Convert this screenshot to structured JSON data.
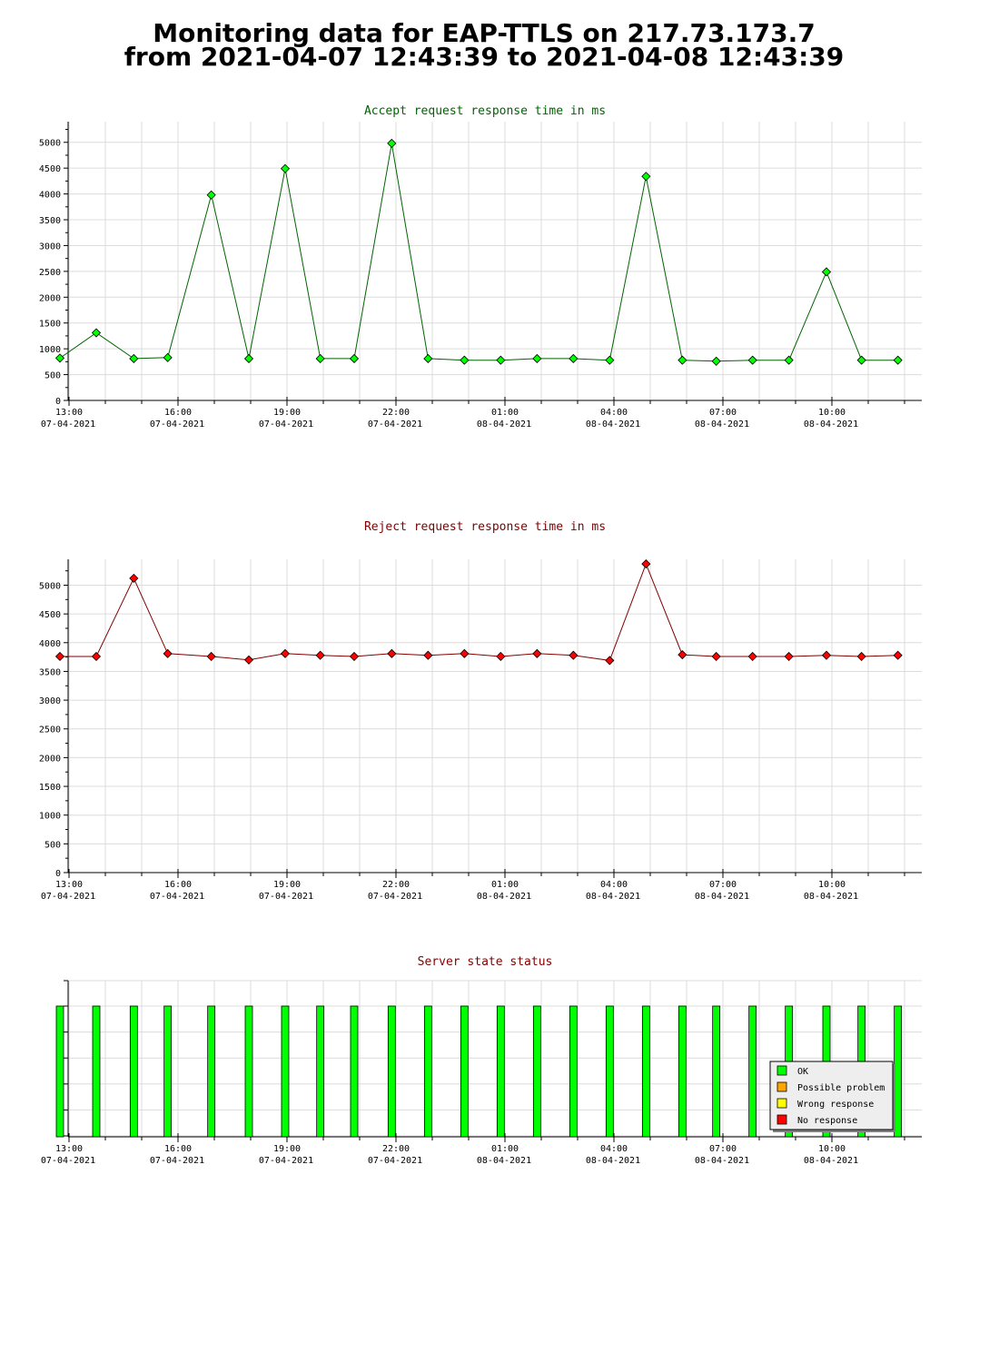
{
  "page": {
    "title_line1": "Monitoring data for EAP-TTLS on 217.73.173.7",
    "title_line2": "from 2021-04-07 12:43:39 to 2021-04-08 12:43:39"
  },
  "x_ticks": [
    {
      "time": "13:00",
      "date": "07-04-2021"
    },
    {
      "time": "16:00",
      "date": "07-04-2021"
    },
    {
      "time": "19:00",
      "date": "07-04-2021"
    },
    {
      "time": "22:00",
      "date": "07-04-2021"
    },
    {
      "time": "01:00",
      "date": "08-04-2021"
    },
    {
      "time": "04:00",
      "date": "08-04-2021"
    },
    {
      "time": "07:00",
      "date": "08-04-2021"
    },
    {
      "time": "10:00",
      "date": "08-04-2021"
    }
  ],
  "colors": {
    "accept_line": "#006400",
    "accept_marker": "#00ff00",
    "accept_title": "#006400",
    "reject_line": "#800000",
    "reject_marker": "#ff0000",
    "reject_title": "#800000",
    "status_title": "#800000",
    "ok": "#00ff00",
    "possible_problem": "#ffa500",
    "wrong_response": "#ffff00",
    "no_response": "#ff0000"
  },
  "chart_data": [
    {
      "type": "line",
      "title": "Accept request response time in ms",
      "ylim": [
        0,
        5400
      ],
      "yticks": [
        0,
        500,
        1000,
        1500,
        2000,
        2500,
        3000,
        3500,
        4000,
        4500,
        5000
      ],
      "grid": true,
      "x": [
        "12:45",
        "13:45",
        "14:47",
        "15:43",
        "16:55",
        "17:57",
        "18:57",
        "19:55",
        "20:51",
        "21:53",
        "22:53",
        "23:53",
        "00:53",
        "01:53",
        "02:53",
        "03:53",
        "04:53",
        "05:53",
        "06:49",
        "07:49",
        "08:49",
        "09:51",
        "10:49",
        "11:49"
      ],
      "series": [
        {
          "values": [
            820,
            1310,
            810,
            830,
            3980,
            810,
            4490,
            810,
            810,
            4980,
            810,
            780,
            780,
            810,
            810,
            780,
            4340,
            780,
            760,
            780,
            780,
            2490,
            780,
            780
          ]
        }
      ]
    },
    {
      "type": "line",
      "title": "Reject request response time in ms",
      "ylim": [
        0,
        5450
      ],
      "yticks": [
        0,
        500,
        1000,
        1500,
        2000,
        2500,
        3000,
        3500,
        4000,
        4500,
        5000
      ],
      "grid": true,
      "x": [
        "12:45",
        "13:45",
        "14:47",
        "15:43",
        "16:55",
        "17:57",
        "18:57",
        "19:55",
        "20:51",
        "21:53",
        "22:53",
        "23:53",
        "00:53",
        "01:53",
        "02:53",
        "03:53",
        "04:53",
        "05:53",
        "06:49",
        "07:49",
        "08:49",
        "09:51",
        "10:49",
        "11:49"
      ],
      "series": [
        {
          "values": [
            3760,
            3760,
            5120,
            3810,
            3760,
            3700,
            3810,
            3780,
            3760,
            3810,
            3780,
            3810,
            3760,
            3810,
            3780,
            3690,
            5370,
            3790,
            3760,
            3760,
            3760,
            3780,
            3760,
            3780
          ]
        }
      ]
    },
    {
      "type": "bar",
      "title": "Server state status",
      "categories": [
        "12:45",
        "13:45",
        "14:47",
        "15:43",
        "16:55",
        "17:57",
        "18:57",
        "19:55",
        "20:51",
        "21:53",
        "22:53",
        "23:53",
        "00:53",
        "01:53",
        "02:53",
        "03:53",
        "04:53",
        "05:53",
        "06:49",
        "07:49",
        "08:49",
        "09:51",
        "10:49",
        "11:49"
      ],
      "states": [
        "OK",
        "OK",
        "OK",
        "OK",
        "OK",
        "OK",
        "OK",
        "OK",
        "OK",
        "OK",
        "OK",
        "OK",
        "OK",
        "OK",
        "OK",
        "OK",
        "OK",
        "OK",
        "OK",
        "OK",
        "OK",
        "OK",
        "OK",
        "OK"
      ],
      "legend": [
        "OK",
        "Possible problem",
        "Wrong response",
        "No response"
      ],
      "legend_position": "bottom-right",
      "grid": true
    }
  ]
}
